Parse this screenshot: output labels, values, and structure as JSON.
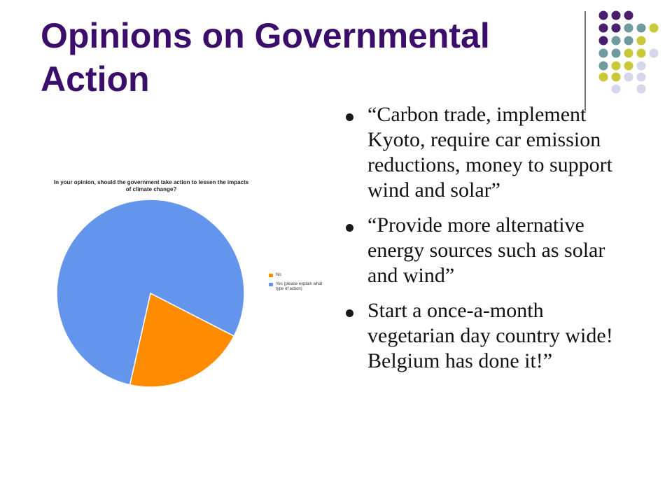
{
  "slide": {
    "title": "Opinions on Governmental Action",
    "bullets": [
      "“Carbon trade, implement Kyoto, require car emission reductions, money to support wind and solar”",
      " “Provide more alternative energy sources such as solar and wind”",
      "Start a once-a-month vegetarian day country wide! Belgium has done it!”"
    ]
  },
  "decoration": {
    "dot_colors": [
      "#4a1e6e",
      "#6f9a9e",
      "#c8c83a",
      "#d6d6ea"
    ]
  },
  "chart_data": {
    "type": "pie",
    "title": "In your opinion, should the government take action to lessen the impacts of climate change?",
    "categories": [
      "No",
      "Yes (please explain what type of action)"
    ],
    "values": [
      21,
      79
    ],
    "colors": [
      "#ff8c00",
      "#6495ed"
    ],
    "legend_position": "right"
  }
}
